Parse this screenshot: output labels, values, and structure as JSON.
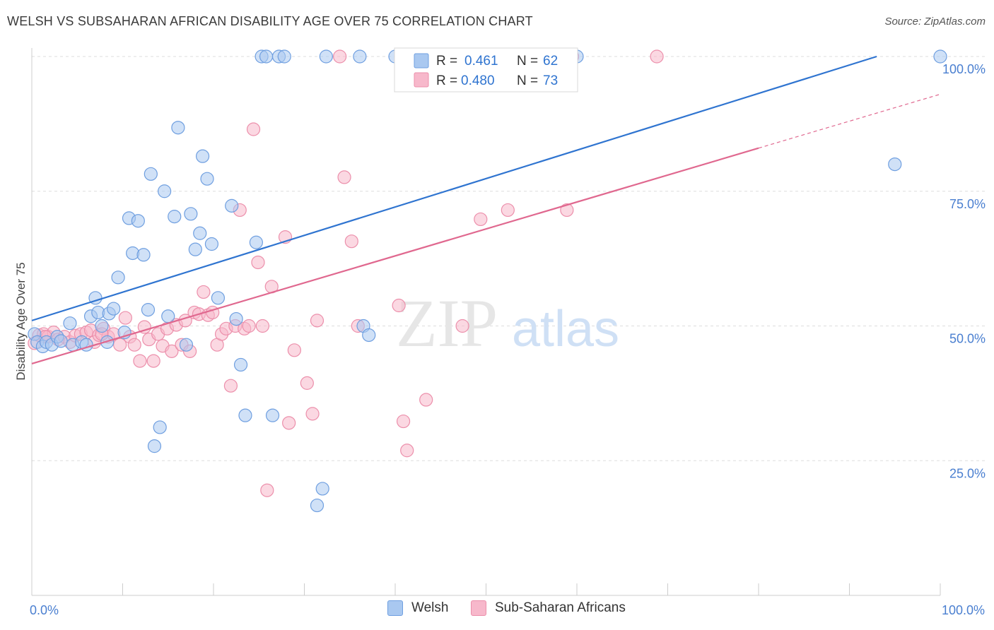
{
  "title": "WELSH VS SUBSAHARAN AFRICAN DISABILITY AGE OVER 75 CORRELATION CHART",
  "source": "Source: ZipAtlas.com",
  "watermark": {
    "zip": "ZIP",
    "atlas": "atlas"
  },
  "legend": {
    "r_label": "R =",
    "n_label": "N =",
    "items": [
      {
        "name": "Welsh",
        "r": "0.461",
        "n": "62"
      },
      {
        "name": "Sub-Saharan Africans",
        "r": "0.480",
        "n": "73"
      }
    ]
  },
  "colors": {
    "welsh_fill": "#a9c8f0",
    "welsh_stroke": "#6f9fe0",
    "welsh_line": "#2f74d0",
    "ssa_fill": "#f7b8cb",
    "ssa_stroke": "#ec8fab",
    "ssa_line": "#e0688f",
    "tick_text": "#4a7fd0",
    "grid": "#dddddd"
  },
  "chart_data": {
    "type": "scatter",
    "xlabel": "",
    "ylabel": "Disability Age Over 75",
    "xlim": [
      0,
      100
    ],
    "ylim": [
      0,
      100
    ],
    "x_tick_labels": [
      "0.0%",
      "100.0%"
    ],
    "y_tick_labels": [
      "25.0%",
      "50.0%",
      "75.0%",
      "100.0%"
    ],
    "y_ticks": [
      25,
      50,
      75,
      100
    ],
    "grid": true,
    "series": [
      {
        "name": "Welsh",
        "trend": {
          "x0": 0,
          "y0": 51.0,
          "x1": 93.0,
          "y1": 100.0
        },
        "points": [
          [
            0.3,
            48.5
          ],
          [
            0.6,
            47.0
          ],
          [
            1.2,
            46.2
          ],
          [
            1.6,
            47.0
          ],
          [
            2.2,
            46.5
          ],
          [
            2.8,
            48.0
          ],
          [
            3.2,
            47.2
          ],
          [
            4.2,
            50.5
          ],
          [
            4.5,
            46.5
          ],
          [
            5.5,
            47.0
          ],
          [
            6.0,
            46.5
          ],
          [
            6.5,
            51.8
          ],
          [
            7.0,
            55.2
          ],
          [
            7.3,
            52.5
          ],
          [
            7.7,
            50.0
          ],
          [
            8.3,
            47.0
          ],
          [
            8.5,
            52.3
          ],
          [
            9.0,
            53.2
          ],
          [
            9.5,
            59.0
          ],
          [
            10.2,
            48.8
          ],
          [
            10.7,
            70.0
          ],
          [
            11.1,
            63.5
          ],
          [
            11.7,
            69.5
          ],
          [
            12.3,
            63.2
          ],
          [
            12.8,
            53.0
          ],
          [
            13.1,
            78.2
          ],
          [
            13.5,
            27.7
          ],
          [
            14.1,
            31.2
          ],
          [
            14.6,
            75.0
          ],
          [
            15.0,
            51.8
          ],
          [
            15.7,
            70.3
          ],
          [
            16.1,
            86.8
          ],
          [
            17.0,
            46.5
          ],
          [
            17.5,
            70.8
          ],
          [
            18.0,
            64.2
          ],
          [
            18.5,
            67.2
          ],
          [
            18.8,
            81.5
          ],
          [
            19.3,
            77.3
          ],
          [
            19.8,
            65.2
          ],
          [
            20.5,
            55.2
          ],
          [
            22.0,
            72.3
          ],
          [
            22.5,
            51.3
          ],
          [
            23.0,
            42.8
          ],
          [
            23.5,
            33.4
          ],
          [
            24.7,
            65.5
          ],
          [
            25.3,
            100
          ],
          [
            25.8,
            100
          ],
          [
            26.5,
            33.4
          ],
          [
            27.2,
            100
          ],
          [
            27.8,
            100
          ],
          [
            31.4,
            16.7
          ],
          [
            32.0,
            19.8
          ],
          [
            32.4,
            100
          ],
          [
            36.1,
            100
          ],
          [
            36.5,
            50.0
          ],
          [
            37.1,
            48.3
          ],
          [
            40.0,
            100
          ],
          [
            43.5,
            100
          ],
          [
            48.8,
            100
          ],
          [
            60.0,
            100
          ],
          [
            95.0,
            80.0
          ],
          [
            100,
            100
          ]
        ]
      },
      {
        "name": "Sub-Saharan Africans",
        "trend": {
          "x0": 0,
          "y0": 43.0,
          "x1": 80.0,
          "y1": 83.0,
          "dash_x1": 100,
          "dash_y1": 93.0
        },
        "points": [
          [
            0.3,
            46.8
          ],
          [
            0.8,
            48.3
          ],
          [
            1.3,
            48.5
          ],
          [
            1.8,
            48.0
          ],
          [
            2.4,
            48.8
          ],
          [
            2.9,
            47.5
          ],
          [
            3.6,
            48.0
          ],
          [
            4.2,
            47.0
          ],
          [
            4.8,
            48.2
          ],
          [
            5.4,
            48.5
          ],
          [
            6.0,
            48.8
          ],
          [
            6.5,
            49.2
          ],
          [
            6.9,
            47.0
          ],
          [
            7.4,
            48.3
          ],
          [
            7.9,
            49.5
          ],
          [
            8.4,
            48.0
          ],
          [
            9.0,
            48.5
          ],
          [
            9.7,
            46.5
          ],
          [
            10.3,
            51.5
          ],
          [
            10.8,
            48.0
          ],
          [
            11.3,
            46.5
          ],
          [
            11.9,
            43.5
          ],
          [
            12.4,
            49.8
          ],
          [
            12.9,
            47.5
          ],
          [
            13.4,
            43.5
          ],
          [
            13.9,
            48.5
          ],
          [
            14.4,
            46.3
          ],
          [
            14.9,
            49.5
          ],
          [
            15.4,
            45.3
          ],
          [
            15.9,
            50.2
          ],
          [
            16.5,
            46.5
          ],
          [
            16.9,
            51.0
          ],
          [
            17.4,
            45.3
          ],
          [
            17.9,
            52.5
          ],
          [
            18.4,
            52.2
          ],
          [
            18.9,
            56.3
          ],
          [
            19.4,
            52.0
          ],
          [
            19.9,
            52.5
          ],
          [
            20.4,
            46.5
          ],
          [
            20.9,
            48.5
          ],
          [
            21.4,
            49.5
          ],
          [
            21.9,
            38.9
          ],
          [
            22.4,
            50.0
          ],
          [
            22.9,
            71.5
          ],
          [
            23.4,
            49.5
          ],
          [
            23.9,
            50.0
          ],
          [
            24.4,
            86.5
          ],
          [
            24.9,
            61.8
          ],
          [
            25.4,
            50.0
          ],
          [
            25.9,
            19.5
          ],
          [
            26.4,
            57.3
          ],
          [
            27.9,
            66.5
          ],
          [
            28.3,
            32.0
          ],
          [
            28.9,
            45.5
          ],
          [
            30.3,
            39.4
          ],
          [
            30.9,
            33.7
          ],
          [
            31.4,
            51.0
          ],
          [
            33.9,
            100
          ],
          [
            34.4,
            77.6
          ],
          [
            35.2,
            65.7
          ],
          [
            35.9,
            50.0
          ],
          [
            40.4,
            53.8
          ],
          [
            40.9,
            32.3
          ],
          [
            41.3,
            26.9
          ],
          [
            43.4,
            36.3
          ],
          [
            47.4,
            50.0
          ],
          [
            49.4,
            69.8
          ],
          [
            52.4,
            71.5
          ],
          [
            58.9,
            71.5
          ],
          [
            59.5,
            100
          ],
          [
            68.8,
            100
          ],
          [
            1.5,
            48.0
          ],
          [
            7.7,
            48.5
          ]
        ]
      }
    ]
  }
}
